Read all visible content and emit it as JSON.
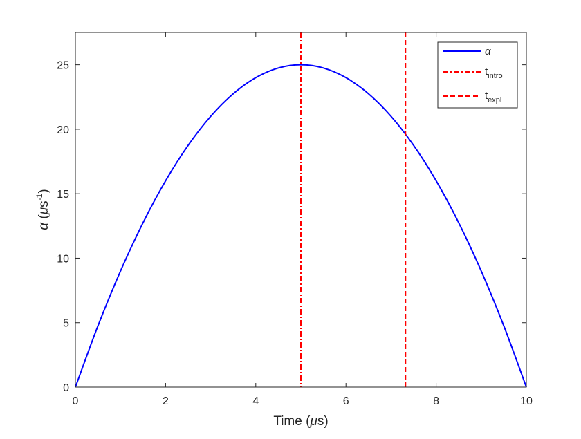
{
  "chart_data": {
    "type": "line",
    "title": "",
    "xlabel": {
      "prefix": "Time (",
      "greek": "μ",
      "suffix": "s)"
    },
    "ylabel": {
      "symbol": "α",
      "open": " (",
      "greek": "μ",
      "unit": "s",
      "exponent": "-1",
      "close": ")"
    },
    "xlim": [
      0,
      10
    ],
    "ylim": [
      0,
      27.5
    ],
    "xticks": [
      0,
      2,
      4,
      6,
      8,
      10
    ],
    "yticks": [
      0,
      5,
      10,
      15,
      20,
      25
    ],
    "grid": false,
    "legend_position": "top-right",
    "series": [
      {
        "name": "α",
        "kind": "curve",
        "color": "#0000ff",
        "dash": "solid",
        "x": [
          0,
          0.5,
          1,
          1.5,
          2,
          2.5,
          3,
          3.5,
          4,
          4.5,
          5,
          5.5,
          6,
          6.5,
          7,
          7.5,
          8,
          8.5,
          9,
          9.5,
          10
        ],
        "y": [
          0,
          4.75,
          9,
          12.75,
          16,
          18.75,
          21,
          22.75,
          24,
          24.75,
          25,
          24.75,
          24,
          22.75,
          21,
          18.75,
          16,
          12.75,
          9,
          4.75,
          0
        ]
      },
      {
        "name": "t",
        "subscript": "intro",
        "kind": "vline",
        "color": "#ff0000",
        "dash": "dashdot",
        "x": 5
      },
      {
        "name": "t",
        "subscript": "expl",
        "kind": "vline",
        "color": "#ff0000",
        "dash": "dashed",
        "x": 7.32
      }
    ]
  }
}
